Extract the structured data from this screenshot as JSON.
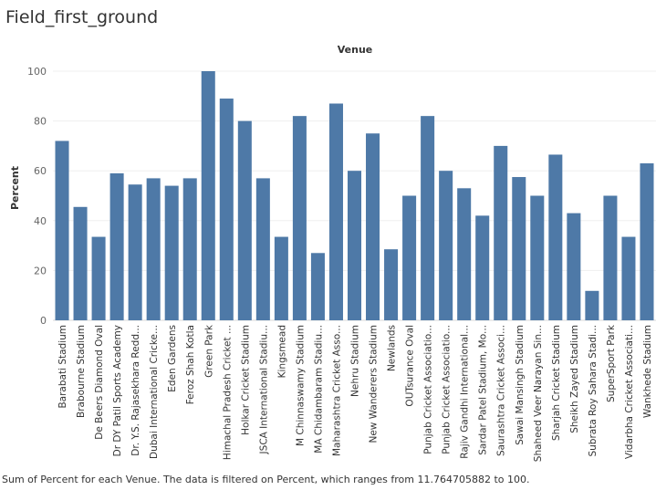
{
  "worksheet": {
    "title": "Field_first_ground",
    "caption": "Sum of Percent for each Venue. The data is filtered on Percent, which ranges from 11.764705882 to 100."
  },
  "colors": {
    "bar": "#4e79a7",
    "grid": "#efefef",
    "axis": "#d9d9d9"
  },
  "chart_data": {
    "type": "bar",
    "title": "",
    "xlabel": "Venue",
    "ylabel": "Percent",
    "ylim": [
      0,
      100
    ],
    "yticks": [
      0,
      20,
      40,
      60,
      80,
      100
    ],
    "grid": true,
    "categories": [
      "Barabati Stadium",
      "Brabourne Stadium",
      "De Beers Diamond Oval",
      "Dr DY Patil Sports Academy",
      "Dr. Y.S. Rajasekhara Redd...",
      "Dubai International Cricke...",
      "Eden Gardens",
      "Feroz Shah Kotla",
      "Green Park",
      "Himachal Pradesh Cricket ...",
      "Holkar Cricket Stadium",
      "JSCA International Stadiu...",
      "Kingsmead",
      "M Chinnaswamy Stadium",
      "MA Chidambaram Stadiu...",
      "Maharashtra Cricket Asso...",
      "Nehru Stadium",
      "New Wanderers Stadium",
      "Newlands",
      "OUTsurance Oval",
      "Punjab Cricket Associatio...",
      "Punjab Cricket Associatio...",
      "Rajiv Gandhi International...",
      "Sardar Patel Stadium, Mo...",
      "Saurashtra Cricket Associ...",
      "Sawai Mansingh Stadium",
      "Shaheed Veer Narayan Sin...",
      "Sharjah Cricket Stadium",
      "Sheikh Zayed Stadium",
      "Subrata Roy Sahara Stadi...",
      "SuperSport Park",
      "Vidarbha Cricket Associati...",
      "Wankhede Stadium"
    ],
    "values": [
      72,
      45.5,
      33.5,
      59,
      54.5,
      57,
      54,
      57,
      100,
      89,
      80,
      57,
      33.5,
      82,
      27,
      87,
      60,
      75,
      28.5,
      50,
      82,
      60,
      53,
      42,
      70,
      57.5,
      50,
      66.5,
      43,
      11.8,
      50,
      33.5,
      63
    ]
  }
}
